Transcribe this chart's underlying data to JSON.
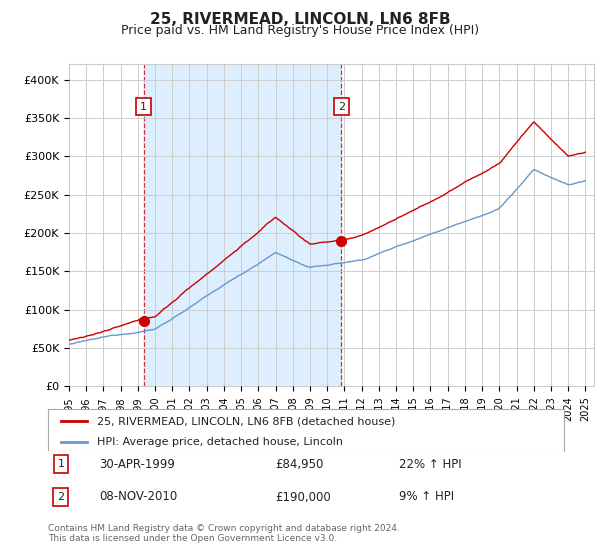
{
  "title": "25, RIVERMEAD, LINCOLN, LN6 8FB",
  "subtitle": "Price paid vs. HM Land Registry's House Price Index (HPI)",
  "background_color": "#ffffff",
  "grid_color": "#cccccc",
  "red_color": "#cc0000",
  "blue_color": "#6699cc",
  "shade_color": "#ddeeff",
  "purchase1": {
    "year": 1999.33,
    "price": 84950,
    "label": "1",
    "year_label": "30-APR-1999",
    "price_label": "£84,950",
    "hpi_label": "22% ↑ HPI"
  },
  "purchase2": {
    "year": 2010.83,
    "price": 190000,
    "label": "2",
    "year_label": "08-NOV-2010",
    "price_label": "£190,000",
    "hpi_label": "9% ↑ HPI"
  },
  "legend_line1": "25, RIVERMEAD, LINCOLN, LN6 8FB (detached house)",
  "legend_line2": "HPI: Average price, detached house, Lincoln",
  "footer": "Contains HM Land Registry data © Crown copyright and database right 2024.\nThis data is licensed under the Open Government Licence v3.0.",
  "ylim": [
    0,
    420000
  ],
  "yticks": [
    0,
    50000,
    100000,
    150000,
    200000,
    250000,
    300000,
    350000,
    400000
  ],
  "ytick_labels": [
    "£0",
    "£50K",
    "£100K",
    "£150K",
    "£200K",
    "£250K",
    "£300K",
    "£350K",
    "£400K"
  ],
  "year_start": 1995,
  "year_end": 2025
}
